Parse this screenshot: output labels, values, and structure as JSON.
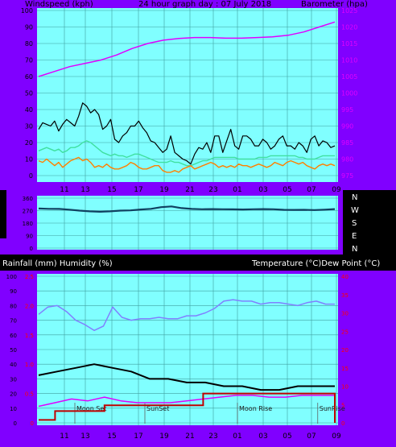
{
  "header": {
    "left_label": "Windspeed (kph)",
    "title": "24 hour graph day : 07 July 2018",
    "right_label": "Barometer (hpa)"
  },
  "middle": {
    "compass": [
      "N",
      "W",
      "S",
      "E",
      "N"
    ]
  },
  "bottom_header": {
    "left_label": "Rainfall (mm)  Humidity (%)",
    "right_label": "Temperature (°C)Dew Point (°C)"
  },
  "colors": {
    "frame": "#8000ff",
    "plot_bg": "#80ffff",
    "grid": "#40a0a0",
    "wind_gust": "#000000",
    "wind_avg": "#40e0a0",
    "wind_orange": "#ff8000",
    "pressure": "#e000ff",
    "direction": "#104060",
    "humidity": "#8080ff",
    "temperature": "#000000",
    "dewpoint": "#e000ff",
    "rain": "#c00000",
    "tick_text": "#000000",
    "axis_red": "#ff0000",
    "axis_magenta": "#e000ff"
  },
  "chart_data": [
    {
      "type": "line",
      "name": "wind-and-pressure",
      "x_ticks": [
        "11",
        "13",
        "15",
        "17",
        "19",
        "21",
        "23",
        "01",
        "03",
        "05",
        "07",
        "09"
      ],
      "ylim_left": [
        0,
        100
      ],
      "yticks_left": [
        "0",
        "10",
        "20",
        "30",
        "40",
        "50",
        "60",
        "70",
        "80",
        "90",
        "100"
      ],
      "ylim_right": [
        975,
        1025
      ],
      "yticks_right": [
        "975",
        "980",
        "985",
        "990",
        "995",
        "1000",
        "1005",
        "1010",
        "1015",
        "1020",
        "1025"
      ],
      "grid": true,
      "series": [
        {
          "key": "gust",
          "axis": "left",
          "values": [
            28,
            32,
            31,
            30,
            33,
            27,
            31,
            34,
            32,
            30,
            36,
            44,
            42,
            38,
            40,
            37,
            28,
            30,
            34,
            22,
            20,
            24,
            26,
            30,
            30,
            33,
            29,
            26,
            21,
            20,
            17,
            14,
            16,
            24,
            14,
            12,
            10,
            9,
            7,
            13,
            17,
            16,
            20,
            14,
            24,
            24,
            14,
            21,
            28,
            18,
            16,
            24,
            24,
            22,
            18,
            18,
            22,
            20,
            16,
            18,
            22,
            24,
            18,
            18,
            16,
            20,
            18,
            14,
            22,
            24,
            18,
            21,
            20,
            17,
            18
          ]
        },
        {
          "key": "average",
          "axis": "left",
          "values": [
            15,
            16,
            17,
            16,
            15,
            16,
            14,
            15,
            17,
            17,
            18,
            20,
            21,
            20,
            18,
            16,
            14,
            13,
            12,
            13,
            12,
            12,
            11,
            12,
            13,
            13,
            12,
            11,
            10,
            9,
            8,
            8,
            8,
            9,
            8,
            8,
            7,
            6,
            6,
            7,
            8,
            9,
            9,
            10,
            11,
            11,
            11,
            11,
            11,
            11,
            10,
            10,
            10,
            10,
            10,
            11,
            11,
            11,
            12,
            12,
            12,
            12,
            12,
            12,
            12,
            11,
            11,
            10,
            10,
            10,
            11,
            12,
            12,
            12,
            12
          ]
        },
        {
          "key": "lull",
          "axis": "left",
          "values": [
            9,
            8,
            10,
            8,
            6,
            8,
            5,
            7,
            9,
            10,
            11,
            9,
            10,
            8,
            5,
            6,
            5,
            7,
            5,
            4,
            4,
            5,
            6,
            8,
            7,
            5,
            4,
            4,
            5,
            6,
            6,
            3,
            2,
            2,
            3,
            2,
            4,
            5,
            6,
            4,
            5,
            6,
            7,
            8,
            7,
            5,
            6,
            5,
            6,
            5,
            7,
            6,
            6,
            5,
            6,
            7,
            6,
            5,
            6,
            8,
            7,
            6,
            8,
            9,
            8,
            7,
            8,
            6,
            5,
            4,
            6,
            7,
            6,
            7,
            6
          ]
        },
        {
          "key": "pressure",
          "axis": "right",
          "values": [
            1005.0,
            1006.5,
            1008.0,
            1009.0,
            1010.0,
            1011.5,
            1013.5,
            1015.0,
            1016.0,
            1016.5,
            1016.8,
            1016.8,
            1016.6,
            1016.6,
            1016.8,
            1017.0,
            1017.5,
            1018.5,
            1020.0,
            1021.5
          ]
        }
      ]
    },
    {
      "type": "line",
      "name": "wind-direction",
      "x_ticks": [
        "11",
        "13",
        "15",
        "17",
        "19",
        "21",
        "23",
        "01",
        "03",
        "05",
        "07",
        "09"
      ],
      "ylim": [
        0,
        360
      ],
      "yticks": [
        "0",
        "90",
        "180",
        "270",
        "360"
      ],
      "grid": true,
      "series": [
        {
          "key": "direction",
          "values": [
            285,
            283,
            282,
            277,
            270,
            265,
            262,
            265,
            270,
            272,
            278,
            283,
            295,
            300,
            288,
            282,
            280,
            281,
            280,
            279,
            278,
            280,
            281,
            280,
            276,
            275,
            276,
            274,
            277,
            281
          ]
        }
      ]
    },
    {
      "type": "line",
      "name": "temp-humidity-rain",
      "x_ticks": [
        "11",
        "13",
        "15",
        "17",
        "19",
        "21",
        "23",
        "01",
        "03",
        "05",
        "07",
        "09"
      ],
      "ylim_left": [
        0,
        100
      ],
      "yticks_left": [
        "0",
        "10",
        "20",
        "30",
        "40",
        "50",
        "60",
        "70",
        "80",
        "90",
        "100"
      ],
      "ylim_rain": [
        0,
        2.5
      ],
      "yticks_rain": [
        "0",
        "0.5",
        "1.0",
        "1.5",
        "2.0",
        "2.5"
      ],
      "ylim_right": [
        0,
        40
      ],
      "yticks_right": [
        "0",
        "5",
        "10",
        "15",
        "20",
        "25",
        "30",
        "35",
        "40"
      ],
      "grid": true,
      "series": [
        {
          "key": "humidity",
          "axis": "left",
          "values": [
            74,
            79,
            80,
            76,
            70,
            67,
            63,
            66,
            79,
            72,
            70,
            71,
            71,
            72,
            71,
            71,
            73,
            73,
            75,
            78,
            83,
            84,
            83,
            83,
            81,
            82,
            82,
            81,
            80,
            82,
            83,
            81,
            81
          ]
        },
        {
          "key": "temperature",
          "axis": "right",
          "values": [
            13,
            14,
            15,
            16,
            15,
            14,
            12,
            12,
            11,
            11,
            10,
            10,
            9,
            9,
            10,
            10,
            10
          ]
        },
        {
          "key": "dewpoint",
          "axis": "right",
          "values": [
            4.5,
            5.5,
            6.5,
            6.0,
            7.0,
            6.0,
            5.5,
            5.5,
            5.5,
            6.0,
            6.5,
            7.0,
            7.5,
            7.5,
            7.0,
            7.0,
            7.5,
            7.5,
            7.5
          ]
        },
        {
          "key": "rain",
          "axis": "rain",
          "values": [
            0.05,
            0.2,
            0.2,
            0.2,
            0.3,
            0.3,
            0.3,
            0.3,
            0.3,
            0.3,
            0.5,
            0.5,
            0.5,
            0.5,
            0.5,
            0.5,
            0.5,
            0.5,
            0.0
          ]
        }
      ],
      "events": [
        {
          "label": "Moon Set",
          "time": "12:00"
        },
        {
          "label": "SunSet",
          "time": "17:30"
        },
        {
          "label": "Moon Rise",
          "time": "01:00"
        },
        {
          "label": "SunRise",
          "time": "07:30"
        }
      ]
    }
  ]
}
